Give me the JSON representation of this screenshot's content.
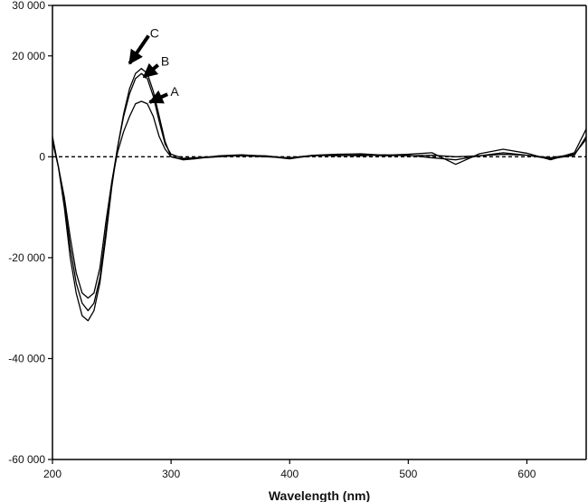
{
  "chart_data": {
    "type": "line",
    "title": "",
    "xlabel": "Wavelength (nm)",
    "ylabel": "",
    "xlim": [
      200,
      650
    ],
    "ylim": [
      -60000,
      30000
    ],
    "grid": false,
    "x_ticks": [
      200,
      300,
      400,
      500,
      600
    ],
    "x_tick_labels": [
      "200",
      "300",
      "400",
      "500",
      "600"
    ],
    "y_ticks": [
      30000,
      20000,
      0,
      -20000,
      -40000,
      -60000
    ],
    "y_tick_labels": [
      "30 000",
      "20 000",
      "0",
      "-20 000",
      "-40 000",
      "-60 000"
    ],
    "baseline": {
      "y": 0,
      "style": "dashed"
    },
    "series": [
      {
        "name": "A",
        "style": "solid",
        "points": [
          [
            200,
            3000
          ],
          [
            205,
            -2000
          ],
          [
            210,
            -8000
          ],
          [
            215,
            -16000
          ],
          [
            220,
            -23000
          ],
          [
            225,
            -27000
          ],
          [
            230,
            -28000
          ],
          [
            235,
            -27000
          ],
          [
            240,
            -22000
          ],
          [
            245,
            -13000
          ],
          [
            250,
            -5000
          ],
          [
            255,
            1000
          ],
          [
            260,
            5000
          ],
          [
            265,
            8000
          ],
          [
            270,
            10500
          ],
          [
            275,
            11000
          ],
          [
            280,
            10500
          ],
          [
            285,
            8000
          ],
          [
            290,
            4000
          ],
          [
            295,
            1500
          ],
          [
            300,
            0
          ],
          [
            310,
            -500
          ],
          [
            320,
            -300
          ],
          [
            340,
            0
          ],
          [
            360,
            300
          ],
          [
            380,
            200
          ],
          [
            400,
            -300
          ],
          [
            420,
            200
          ],
          [
            440,
            300
          ],
          [
            460,
            200
          ],
          [
            480,
            400
          ],
          [
            500,
            200
          ],
          [
            520,
            300
          ],
          [
            540,
            0
          ],
          [
            560,
            200
          ],
          [
            580,
            500
          ],
          [
            600,
            300
          ],
          [
            620,
            -200
          ],
          [
            640,
            500
          ],
          [
            650,
            3500
          ]
        ]
      },
      {
        "name": "B",
        "style": "solid",
        "points": [
          [
            200,
            3500
          ],
          [
            205,
            -2000
          ],
          [
            210,
            -9000
          ],
          [
            215,
            -18000
          ],
          [
            220,
            -25000
          ],
          [
            225,
            -29000
          ],
          [
            230,
            -30500
          ],
          [
            235,
            -29000
          ],
          [
            240,
            -24000
          ],
          [
            245,
            -15000
          ],
          [
            250,
            -5000
          ],
          [
            255,
            2000
          ],
          [
            260,
            8000
          ],
          [
            265,
            12500
          ],
          [
            270,
            15500
          ],
          [
            275,
            16500
          ],
          [
            280,
            15500
          ],
          [
            285,
            12000
          ],
          [
            290,
            7000
          ],
          [
            295,
            2500
          ],
          [
            300,
            500
          ],
          [
            310,
            -300
          ],
          [
            320,
            -200
          ],
          [
            340,
            100
          ],
          [
            360,
            200
          ],
          [
            380,
            0
          ],
          [
            400,
            -200
          ],
          [
            420,
            300
          ],
          [
            440,
            200
          ],
          [
            460,
            400
          ],
          [
            480,
            200
          ],
          [
            500,
            300
          ],
          [
            520,
            -200
          ],
          [
            540,
            -600
          ],
          [
            560,
            200
          ],
          [
            580,
            800
          ],
          [
            600,
            300
          ],
          [
            620,
            -400
          ],
          [
            640,
            300
          ],
          [
            650,
            4000
          ]
        ]
      },
      {
        "name": "C",
        "style": "solid",
        "points": [
          [
            200,
            4000
          ],
          [
            205,
            -2000
          ],
          [
            210,
            -10000
          ],
          [
            215,
            -20000
          ],
          [
            220,
            -27000
          ],
          [
            225,
            -31500
          ],
          [
            230,
            -32500
          ],
          [
            235,
            -30500
          ],
          [
            240,
            -25000
          ],
          [
            245,
            -16000
          ],
          [
            250,
            -6000
          ],
          [
            255,
            2000
          ],
          [
            260,
            8500
          ],
          [
            265,
            13500
          ],
          [
            270,
            16500
          ],
          [
            275,
            17500
          ],
          [
            280,
            16500
          ],
          [
            285,
            13000
          ],
          [
            290,
            8000
          ],
          [
            295,
            3000
          ],
          [
            300,
            0
          ],
          [
            310,
            -600
          ],
          [
            320,
            -400
          ],
          [
            340,
            200
          ],
          [
            360,
            400
          ],
          [
            380,
            100
          ],
          [
            400,
            -400
          ],
          [
            420,
            300
          ],
          [
            440,
            500
          ],
          [
            460,
            600
          ],
          [
            480,
            300
          ],
          [
            500,
            500
          ],
          [
            520,
            800
          ],
          [
            540,
            -1500
          ],
          [
            560,
            600
          ],
          [
            580,
            1500
          ],
          [
            600,
            700
          ],
          [
            620,
            -600
          ],
          [
            640,
            800
          ],
          [
            650,
            5500
          ]
        ]
      }
    ],
    "annotations": [
      {
        "text": "C",
        "x": 286,
        "y": 24500
      },
      {
        "text": "B",
        "x": 295,
        "y": 19000
      },
      {
        "text": "A",
        "x": 303,
        "y": 13000
      }
    ],
    "arrows": [
      {
        "from": [
          281,
          24000
        ],
        "to": [
          265,
          18500
        ]
      },
      {
        "from": [
          289,
          18200
        ],
        "to": [
          277,
          15800
        ]
      },
      {
        "from": [
          297,
          12400
        ],
        "to": [
          282,
          10800
        ]
      }
    ]
  }
}
